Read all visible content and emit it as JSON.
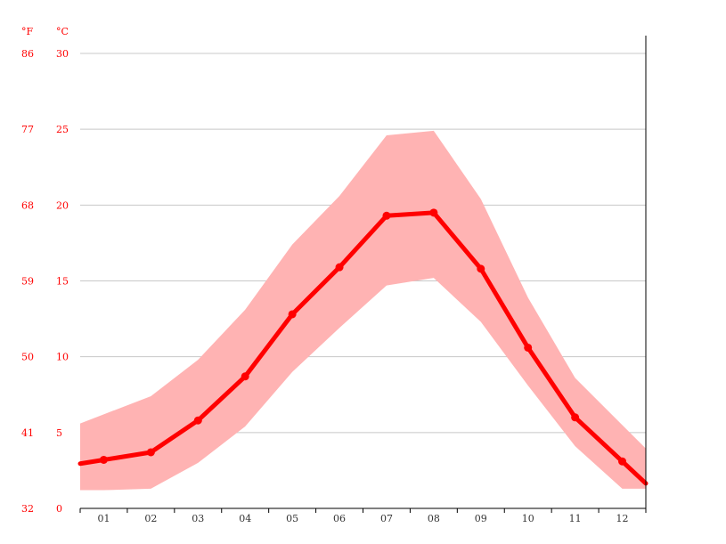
{
  "chart_data": {
    "type": "line",
    "title": "",
    "xlabel": "",
    "ylabel": "",
    "units": {
      "f": "°F",
      "c": "°C"
    },
    "categories": [
      "01",
      "02",
      "03",
      "04",
      "05",
      "06",
      "07",
      "08",
      "09",
      "10",
      "11",
      "12"
    ],
    "y_ticks_c": [
      "0",
      "5",
      "10",
      "15",
      "20",
      "25",
      "30"
    ],
    "y_ticks_f": [
      "32",
      "41",
      "50",
      "59",
      "68",
      "77",
      "86"
    ],
    "ylim": [
      0,
      30
    ],
    "grid": true,
    "colors": {
      "line": "#ff0000",
      "band": "#ffb3b3",
      "grid": "#c8c8c8",
      "axis": "#000000",
      "tick_text": "#ff0000",
      "month_text": "#333333"
    },
    "series": [
      {
        "values": [
          3.2,
          3.7,
          5.8,
          8.7,
          12.8,
          15.9,
          19.3,
          19.5,
          15.8,
          10.6,
          6.0,
          3.1
        ]
      }
    ],
    "band": {
      "upper": [
        6.2,
        7.4,
        9.8,
        13.1,
        17.4,
        20.6,
        24.6,
        24.9,
        20.4,
        13.9,
        8.6,
        5.5
      ],
      "lower": [
        1.2,
        1.3,
        3.0,
        5.4,
        9.0,
        11.9,
        14.7,
        15.2,
        12.3,
        8.1,
        4.1,
        1.3
      ]
    }
  }
}
